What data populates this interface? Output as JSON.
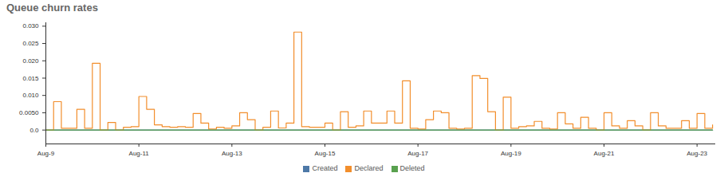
{
  "chart_data": {
    "type": "line",
    "title": "Queue churn rates",
    "x": [
      9,
      9.1667,
      9.3333,
      9.5,
      9.6667,
      9.8333,
      10,
      10.1667,
      10.3333,
      10.5,
      10.6667,
      10.8333,
      11,
      11.1667,
      11.3333,
      11.5,
      11.6667,
      11.8333,
      12,
      12.1667,
      12.3333,
      12.5,
      12.6667,
      12.8333,
      13,
      13.1667,
      13.3333,
      13.5,
      13.6667,
      13.8333,
      14,
      14.1667,
      14.3333,
      14.5,
      14.6667,
      14.8333,
      15,
      15.1667,
      15.3333,
      15.5,
      15.6667,
      15.8333,
      16,
      16.1667,
      16.3333,
      16.5,
      16.6667,
      16.8333,
      17,
      17.1667,
      17.3333,
      17.5,
      17.6667,
      17.8333,
      18,
      18.1667,
      18.3333,
      18.5,
      18.6667,
      18.8333,
      19,
      19.1667,
      19.3333,
      19.5,
      19.6667,
      19.8333,
      20,
      20.1667,
      20.3333,
      20.5,
      20.6667,
      20.8333,
      21,
      21.1667,
      21.3333,
      21.5,
      21.6667,
      21.8333,
      22,
      22.1667,
      22.3333,
      22.5,
      22.6667,
      22.8333,
      23,
      23.1667,
      23.3333
    ],
    "series": [
      {
        "name": "Created",
        "color": "#4e79a7",
        "values": [
          0,
          0,
          0,
          0,
          0,
          0,
          0,
          0,
          0,
          0,
          0,
          0,
          0,
          0,
          0,
          0,
          0,
          0,
          0,
          0,
          0,
          0,
          0,
          0,
          0,
          0,
          0,
          0,
          0,
          0,
          0,
          0,
          0,
          0,
          0,
          0,
          0,
          0,
          0,
          0,
          0,
          0,
          0,
          0,
          0,
          0,
          0,
          0,
          0,
          0,
          0,
          0,
          0,
          0,
          0,
          0,
          0,
          0,
          0,
          0,
          0,
          0,
          0,
          0,
          0,
          0,
          0,
          0,
          0,
          0,
          0,
          0,
          0,
          0,
          0,
          0,
          0,
          0,
          0,
          0,
          0,
          0,
          0,
          0,
          0,
          0,
          0
        ]
      },
      {
        "name": "Declared",
        "color": "#f28e2c",
        "values": [
          0,
          0.0082,
          0.0005,
          0.0005,
          0.006,
          0.0005,
          0.0193,
          0,
          0.0022,
          0,
          0.0008,
          0.001,
          0.0097,
          0.006,
          0.0015,
          0.001,
          0.0008,
          0.001,
          0.0008,
          0.0048,
          0.002,
          0.0003,
          0.0008,
          0.0005,
          0.0012,
          0.005,
          0.003,
          0,
          0.0008,
          0.0055,
          0.0006,
          0.002,
          0.0283,
          0.001,
          0.0008,
          0.0008,
          0.002,
          0,
          0.0053,
          0.0008,
          0.0012,
          0.0055,
          0.002,
          0.002,
          0.0055,
          0.002,
          0.0142,
          0.0005,
          0.0003,
          0.003,
          0.0055,
          0.005,
          0.0005,
          0.0003,
          0.0005,
          0.0157,
          0.0149,
          0.0053,
          0,
          0.0095,
          0.0005,
          0.001,
          0.0012,
          0.0025,
          0.0005,
          0.0003,
          0.005,
          0.0018,
          0.0005,
          0.0037,
          0.0005,
          0,
          0.005,
          0.0012,
          0.0005,
          0.0027,
          0.0012,
          0,
          0.005,
          0.0012,
          0.0005,
          0.0005,
          0.0027,
          0.0005,
          0.0048,
          0.0005,
          0.0015
        ]
      },
      {
        "name": "Deleted",
        "color": "#59a14f",
        "values": [
          0,
          0,
          0,
          0,
          0,
          0,
          0,
          0,
          0,
          0,
          0,
          0,
          0,
          0,
          0,
          0,
          0,
          0,
          0,
          0,
          0,
          0,
          0,
          0,
          0,
          0,
          0,
          0,
          0,
          0,
          0,
          0,
          0,
          0,
          0,
          0,
          0,
          0,
          0,
          0,
          0,
          0,
          0,
          0,
          0,
          0,
          0,
          0,
          0,
          0,
          0,
          0,
          0,
          0,
          0,
          0,
          0,
          0,
          0,
          0,
          0,
          0,
          0,
          0,
          0,
          0,
          0,
          0,
          0,
          0,
          0,
          0,
          0,
          0,
          0,
          0,
          0,
          0,
          0,
          0,
          0,
          0,
          0,
          0,
          0,
          0,
          0
        ]
      }
    ],
    "xlim": [
      9,
      23.4
    ],
    "xticks": [
      {
        "value": 9,
        "label": "Aug-9"
      },
      {
        "value": 11,
        "label": "Aug-11"
      },
      {
        "value": 13,
        "label": "Aug-13"
      },
      {
        "value": 15,
        "label": "Aug-15"
      },
      {
        "value": 17,
        "label": "Aug-17"
      },
      {
        "value": 19,
        "label": "Aug-19"
      },
      {
        "value": 21,
        "label": "Aug-21"
      },
      {
        "value": 23,
        "label": "Aug-23"
      }
    ],
    "ylim": [
      -0.004,
      0.031
    ],
    "yticks": [
      {
        "value": 0,
        "label": "0.0"
      },
      {
        "value": 0.005,
        "label": "0.0050"
      },
      {
        "value": 0.01,
        "label": "0.010"
      },
      0.015,
      {
        "value": 0.02,
        "label": "0.020"
      },
      0.025,
      {
        "value": 0.03,
        "label": "0.030"
      }
    ],
    "grid": false,
    "legend": "bottom"
  }
}
